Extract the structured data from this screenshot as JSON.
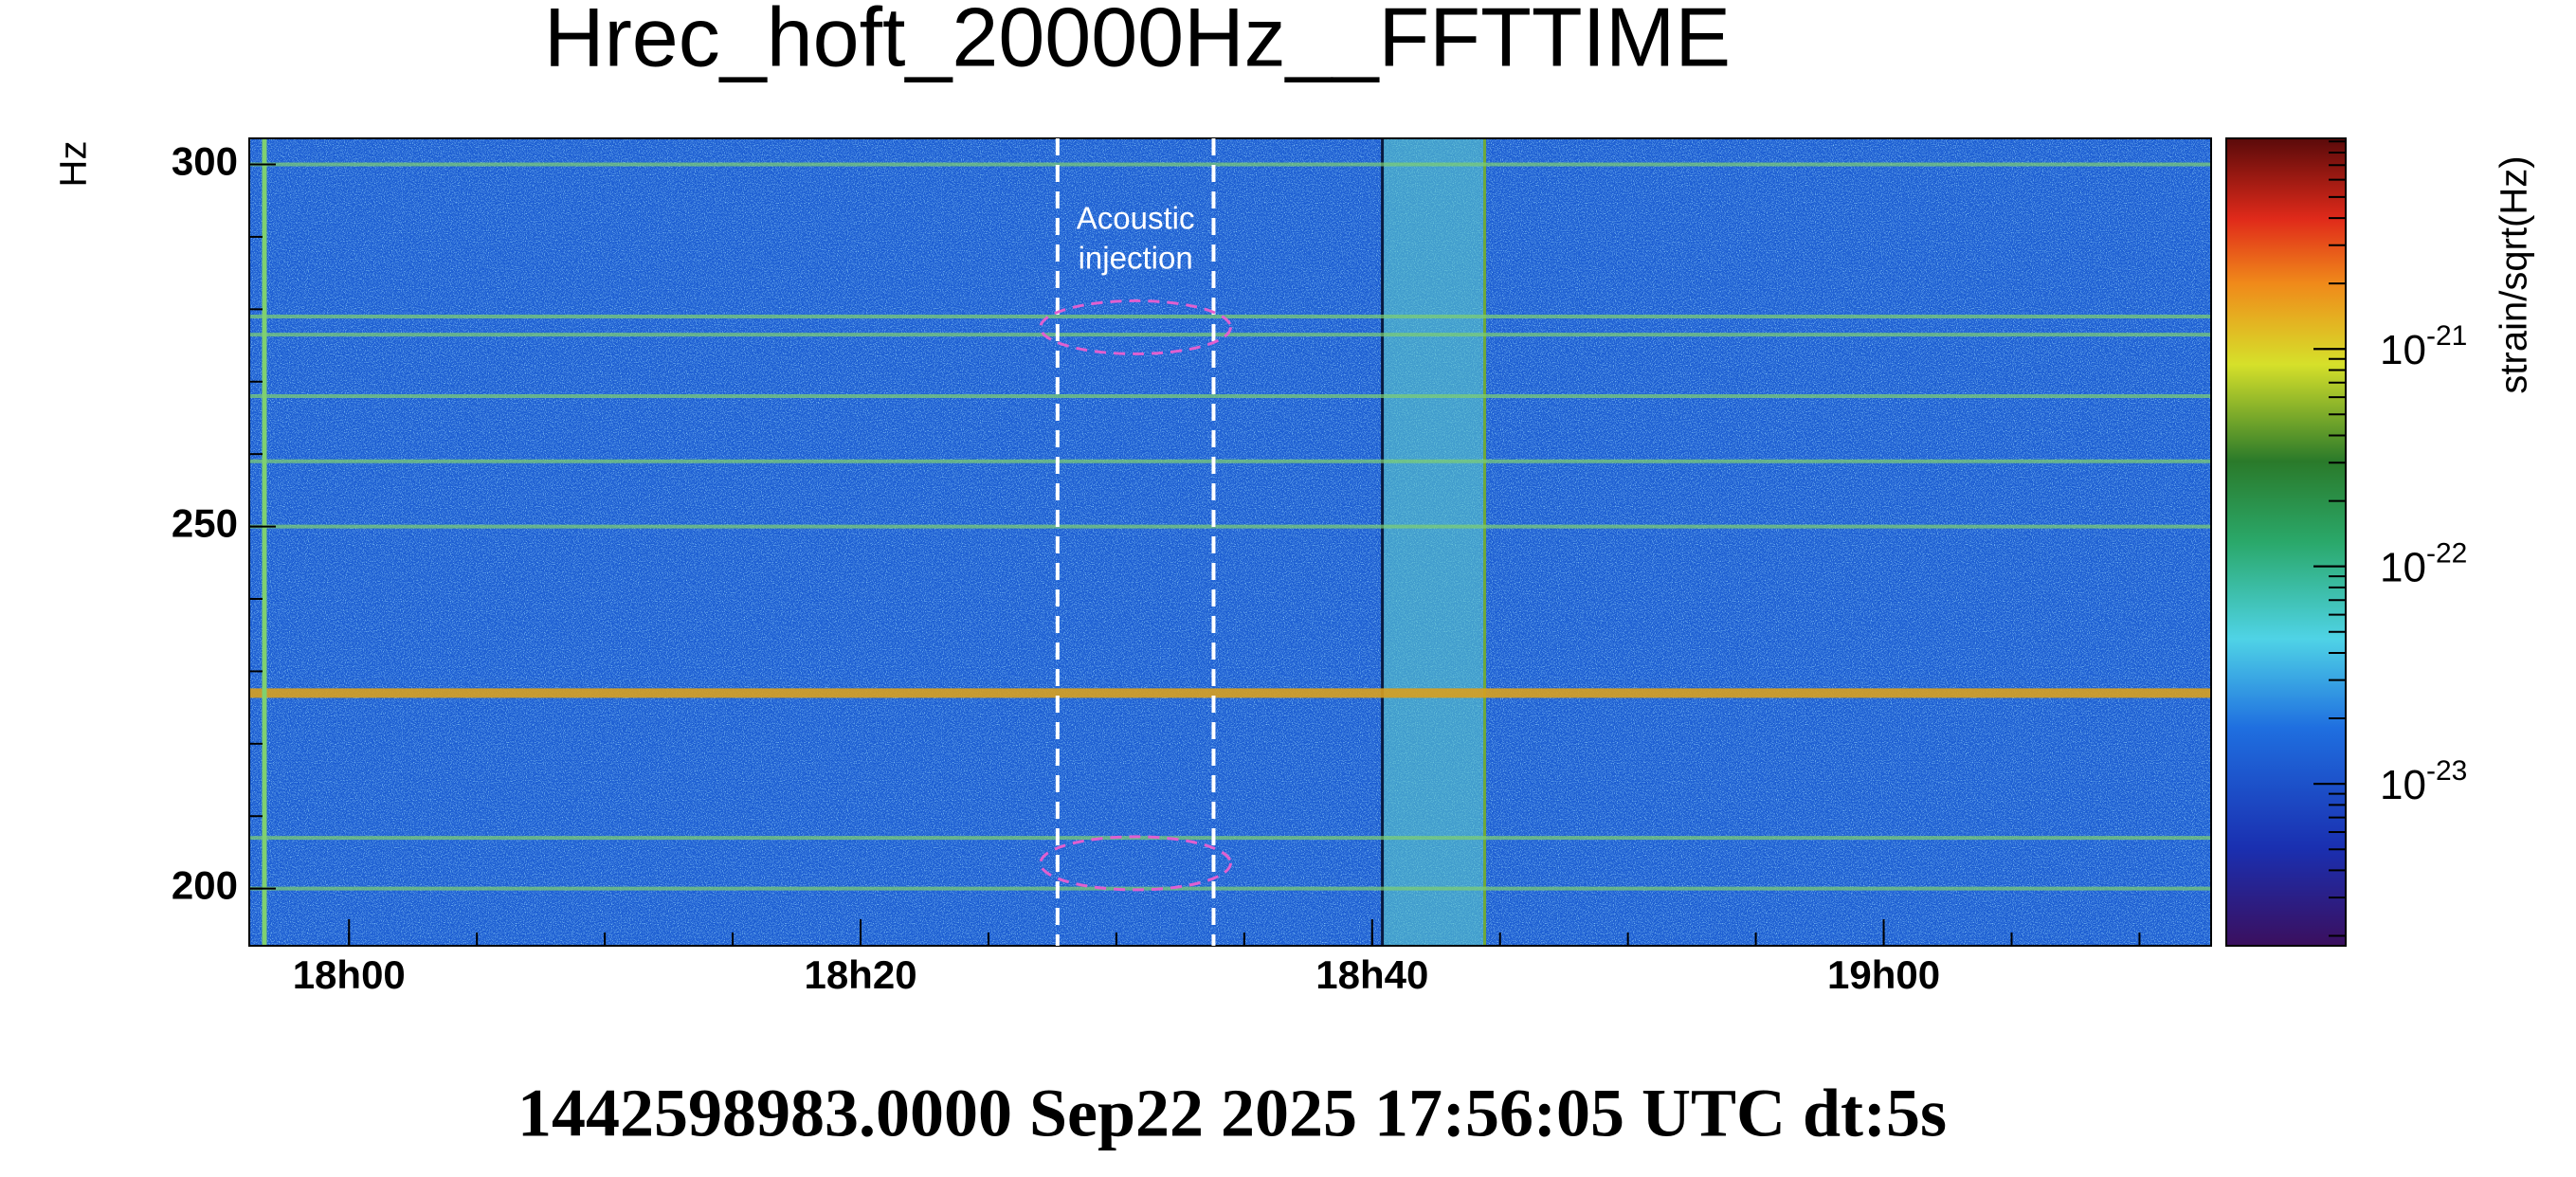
{
  "chart_data": {
    "type": "spectrogram",
    "title": "Hrec_hoft_20000Hz__FFTTIME",
    "ylabel": "Hz",
    "colorbar_label": "strain/sqrt(Hz)",
    "footer": "1442598983.0000 Sep22 2025 17:56:05 UTC dt:5s",
    "xlim": [
      1076.1,
      1152.8
    ],
    "xticks": [
      {
        "value": 1080,
        "label": "18h00"
      },
      {
        "value": 1100,
        "label": "18h20"
      },
      {
        "value": 1120,
        "label": "18h40"
      },
      {
        "value": 1140,
        "label": "19h00"
      }
    ],
    "ylim": [
      192.1,
      303.6
    ],
    "yticks": [
      200,
      250,
      300
    ],
    "clim": [
      1.8e-24,
      9.3e-21
    ],
    "cscale": "log",
    "cticks": [
      {
        "value": 1e-21,
        "label": "10",
        "sup": "-21"
      },
      {
        "value": 1e-22,
        "label": "10",
        "sup": "-22"
      },
      {
        "value": 1e-23,
        "label": "10",
        "sup": "-23"
      }
    ],
    "spectral_lines_hz": [
      300,
      279,
      276.5,
      268,
      259,
      250,
      227,
      207,
      200
    ],
    "broadband_interval": [
      1120.4,
      1124.4
    ],
    "injection_interval": [
      1107.7,
      1113.8
    ],
    "injection_regions_hz": [
      277.5,
      203.5
    ],
    "annotation": [
      "Acoustic",
      "injection"
    ]
  }
}
